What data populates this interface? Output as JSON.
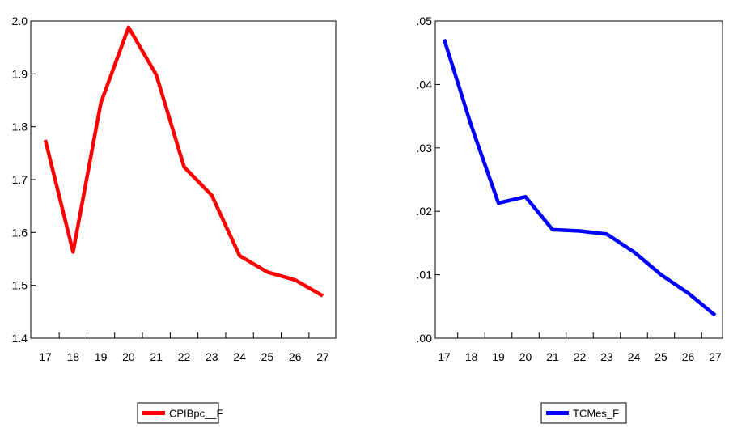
{
  "chart_data": [
    {
      "type": "line",
      "x": [
        "17",
        "18",
        "19",
        "20",
        "21",
        "22",
        "23",
        "24",
        "25",
        "26",
        "27"
      ],
      "series": [
        {
          "name": "CPIBpc__F",
          "color": "#ff0000",
          "values": [
            1.775,
            1.563,
            1.845,
            1.988,
            1.898,
            1.724,
            1.67,
            1.556,
            1.525,
            1.51,
            1.48
          ]
        }
      ],
      "ylim": [
        1.4,
        2.0
      ],
      "y_ticks": [
        "1.4",
        "1.5",
        "1.6",
        "1.7",
        "1.8",
        "1.9",
        "2.0"
      ],
      "grid": false,
      "legend": "bottom-center"
    },
    {
      "type": "line",
      "x": [
        "17",
        "18",
        "19",
        "20",
        "21",
        "22",
        "23",
        "24",
        "25",
        "26",
        "27"
      ],
      "series": [
        {
          "name": "TCMes_F",
          "color": "#0000ff",
          "values": [
            0.0471,
            0.0335,
            0.0213,
            0.0223,
            0.0171,
            0.0169,
            0.0164,
            0.0136,
            0.01,
            0.0071,
            0.0036
          ]
        }
      ],
      "ylim": [
        0.0,
        0.05
      ],
      "y_ticks": [
        ".00",
        ".01",
        ".02",
        ".03",
        ".04",
        ".05"
      ],
      "grid": false,
      "legend": "bottom-center"
    }
  ]
}
